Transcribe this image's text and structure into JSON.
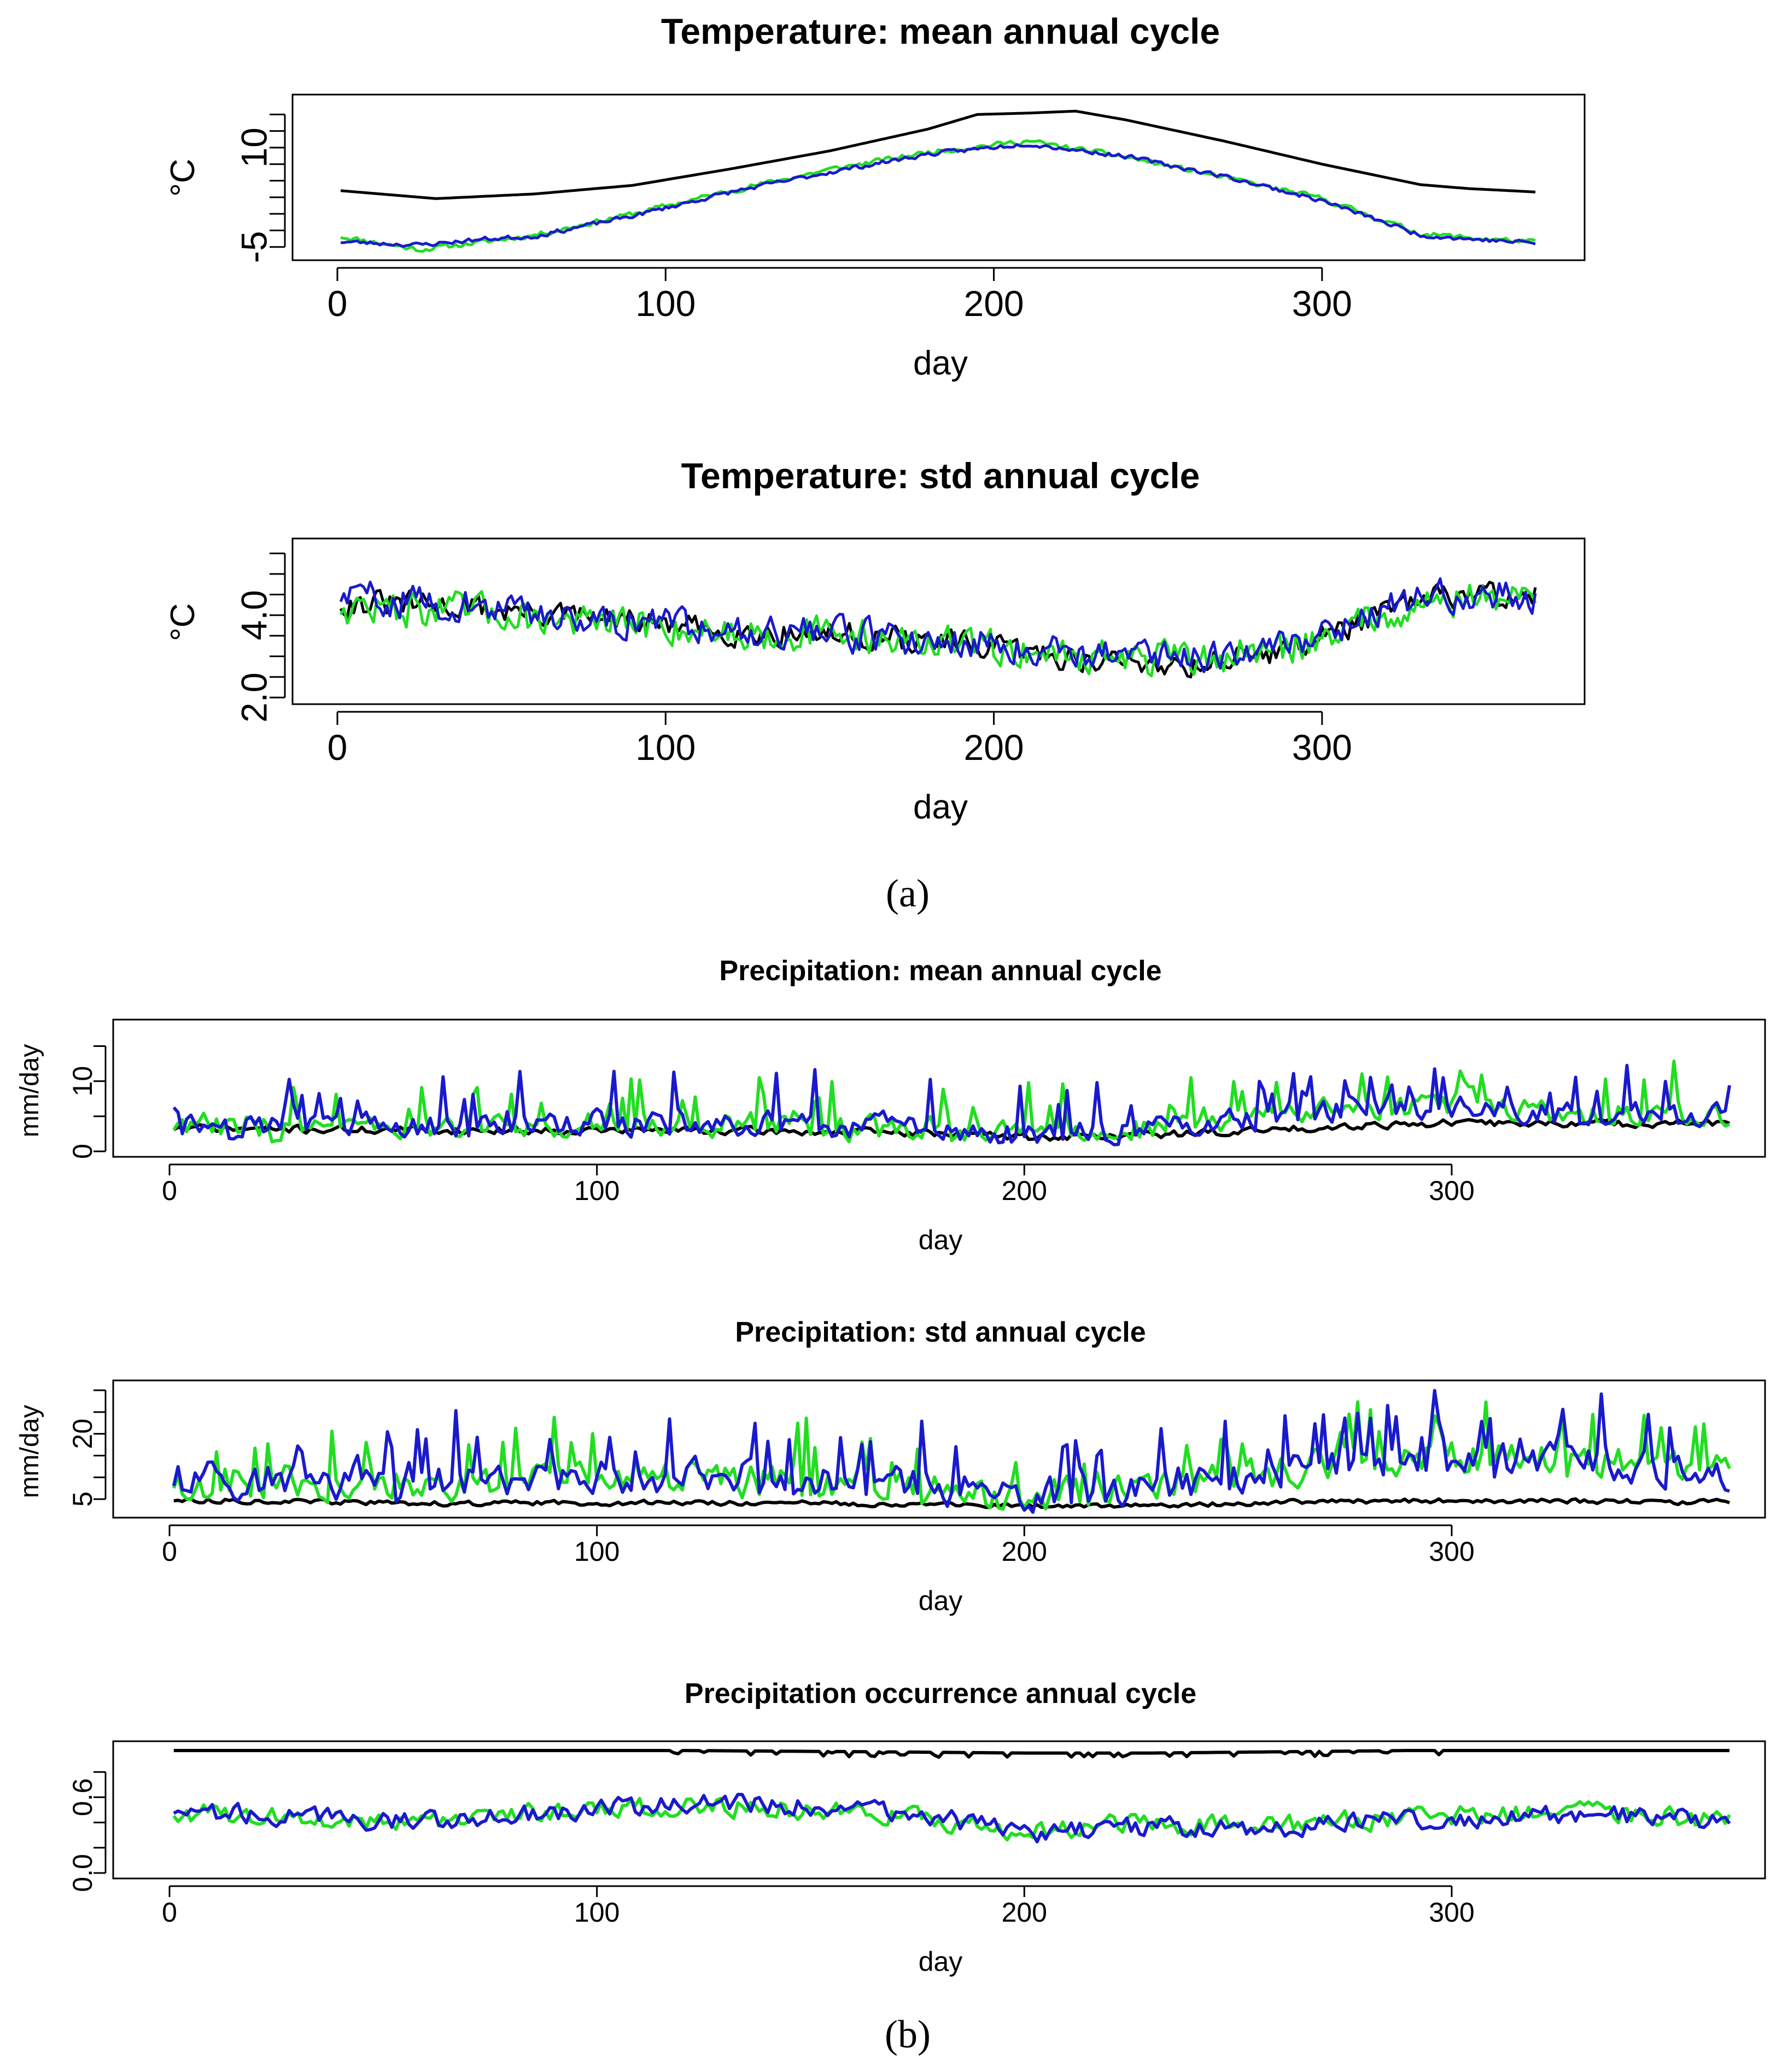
{
  "figure": {
    "panel_labels": [
      "(a)",
      "(b)"
    ]
  },
  "series_colors": {
    "observed": "#000000",
    "model_green": "#22dd22",
    "model_blue": "#1a1acc"
  },
  "chart_data": [
    {
      "type": "line",
      "title": "Temperature: mean annual cycle",
      "xlabel": "day",
      "ylabel": "°C",
      "xlim": [
        0,
        365
      ],
      "ylim": [
        -6,
        17
      ],
      "xticks": [
        0,
        100,
        200,
        300
      ],
      "yticks": [
        -5,
        10
      ],
      "yticks_minor": [
        -5,
        -2.5,
        0,
        2.5,
        5,
        7.5,
        10,
        12.5,
        15
      ],
      "series": [
        {
          "name": "observed",
          "color": "#000000",
          "x": [
            1,
            30,
            60,
            90,
            120,
            150,
            180,
            195,
            210,
            225,
            240,
            270,
            300,
            330,
            345,
            365
          ],
          "y": [
            3.5,
            2.3,
            3.0,
            4.3,
            6.8,
            9.5,
            12.8,
            15.0,
            15.2,
            15.5,
            14.2,
            11.0,
            7.5,
            4.4,
            3.8,
            3.3
          ]
        },
        {
          "name": "model_green",
          "color": "#22dd22",
          "x": [
            1,
            25,
            45,
            60,
            90,
            120,
            150,
            180,
            210,
            240,
            270,
            300,
            330,
            345,
            365
          ],
          "y": [
            -3.4,
            -5.4,
            -4.2,
            -3.2,
            0.0,
            3.5,
            6.7,
            9.3,
            11.0,
            8.6,
            5.5,
            2.3,
            -3.0,
            -3.6,
            -4.3
          ],
          "noise": 0.35,
          "seed": 11
        },
        {
          "name": "model_blue",
          "color": "#1a1acc",
          "x": [
            1,
            25,
            45,
            60,
            90,
            120,
            150,
            180,
            210,
            240,
            270,
            300,
            330,
            345,
            365
          ],
          "y": [
            -4.2,
            -4.7,
            -3.8,
            -3.4,
            -0.3,
            3.3,
            6.3,
            9.0,
            10.6,
            8.7,
            5.7,
            2.0,
            -3.2,
            -3.8,
            -4.4
          ],
          "noise": 0.3,
          "seed": 23
        }
      ]
    },
    {
      "type": "line",
      "title": "Temperature: std annual cycle",
      "xlabel": "day",
      "ylabel": "°C",
      "xlim": [
        0,
        365
      ],
      "ylim": [
        2,
        5.7
      ],
      "xticks": [
        0,
        100,
        200,
        300
      ],
      "yticks": [
        2.0,
        4.0
      ],
      "yticks_minor": [
        2.0,
        2.5,
        3.0,
        3.5,
        4.0,
        4.5,
        5.0,
        5.5
      ],
      "series": [
        {
          "name": "observed",
          "color": "#000000",
          "x": [
            1,
            40,
            80,
            120,
            160,
            200,
            230,
            260,
            290,
            320,
            340,
            365
          ],
          "y": [
            4.3,
            4.2,
            3.9,
            3.6,
            3.5,
            3.2,
            2.9,
            2.8,
            3.2,
            4.1,
            4.5,
            4.5
          ],
          "noise": 0.28,
          "seed": 31
        },
        {
          "name": "model_green",
          "color": "#22dd22",
          "x": [
            1,
            40,
            80,
            120,
            160,
            200,
            230,
            260,
            290,
            320,
            340,
            365
          ],
          "y": [
            4.2,
            4.1,
            3.8,
            3.6,
            3.5,
            3.2,
            3.0,
            2.9,
            3.2,
            4.1,
            4.4,
            4.4
          ],
          "noise": 0.38,
          "seed": 47
        },
        {
          "name": "model_blue",
          "color": "#1a1acc",
          "x": [
            1,
            40,
            80,
            120,
            160,
            200,
            230,
            260,
            290,
            320,
            340,
            365
          ],
          "y": [
            4.5,
            4.2,
            3.9,
            3.7,
            3.5,
            3.3,
            3.1,
            3.0,
            3.3,
            4.2,
            4.5,
            4.4
          ],
          "noise": 0.36,
          "seed": 59
        }
      ]
    },
    {
      "type": "line",
      "title": "Precipitation: mean annual cycle",
      "xlabel": "day",
      "ylabel": "mm/day",
      "xlim": [
        0,
        365
      ],
      "ylim": [
        0,
        18
      ],
      "xticks": [
        0,
        100,
        200,
        300
      ],
      "yticks": [
        0,
        10
      ],
      "yticks_minor": [
        0,
        5,
        10,
        15
      ],
      "series": [
        {
          "name": "observed",
          "color": "#000000",
          "x": [
            1,
            60,
            120,
            180,
            200,
            220,
            250,
            280,
            300,
            330,
            365
          ],
          "y": [
            3.3,
            3.0,
            3.0,
            2.6,
            2.0,
            2.2,
            2.8,
            3.8,
            4.0,
            4.0,
            4.0
          ],
          "noise": 0.5,
          "seed": 71,
          "spike": 0.0
        },
        {
          "name": "model_green",
          "color": "#22dd22",
          "x": [
            1,
            60,
            120,
            180,
            200,
            220,
            250,
            280,
            300,
            330,
            365
          ],
          "y": [
            3.8,
            3.3,
            4.0,
            3.0,
            2.2,
            2.8,
            4.5,
            6.5,
            6.6,
            5.5,
            5.0
          ],
          "noise": 1.6,
          "seed": 83,
          "spike": 0.12
        },
        {
          "name": "model_blue",
          "color": "#1a1acc",
          "x": [
            1,
            60,
            120,
            180,
            200,
            220,
            250,
            280,
            300,
            330,
            365
          ],
          "y": [
            4.0,
            3.4,
            4.2,
            3.2,
            2.0,
            2.6,
            4.4,
            6.3,
            6.5,
            5.2,
            4.8
          ],
          "noise": 1.6,
          "seed": 97,
          "spike": 0.12
        }
      ]
    },
    {
      "type": "line",
      "title": "Precipitation: std annual cycle",
      "xlabel": "day",
      "ylabel": "mm/day",
      "xlim": [
        0,
        365
      ],
      "ylim": [
        2,
        31
      ],
      "xticks": [
        0,
        100,
        200,
        300
      ],
      "yticks": [
        5,
        20
      ],
      "yticks_minor": [
        5,
        10,
        15,
        20,
        25,
        30
      ],
      "series": [
        {
          "name": "observed",
          "color": "#000000",
          "x": [
            1,
            60,
            120,
            180,
            200,
            230,
            260,
            290,
            330,
            365
          ],
          "y": [
            4.8,
            4.0,
            4.2,
            3.8,
            3.3,
            3.5,
            4.3,
            4.6,
            4.5,
            4.3
          ],
          "noise": 0.5,
          "seed": 113,
          "spike": 0.0
        },
        {
          "name": "model_green",
          "color": "#22dd22",
          "x": [
            1,
            60,
            120,
            180,
            200,
            230,
            260,
            290,
            330,
            365
          ],
          "y": [
            9.0,
            8.5,
            10.0,
            7.5,
            5.5,
            7.5,
            11.0,
            15.0,
            14.0,
            11.0
          ],
          "noise": 3.5,
          "seed": 127,
          "spike": 0.14
        },
        {
          "name": "model_blue",
          "color": "#1a1acc",
          "x": [
            1,
            60,
            120,
            180,
            200,
            230,
            260,
            290,
            330,
            365
          ],
          "y": [
            9.5,
            8.8,
            10.5,
            7.8,
            5.8,
            7.8,
            11.5,
            14.5,
            14.0,
            10.5
          ],
          "noise": 3.5,
          "seed": 139,
          "spike": 0.14
        }
      ]
    },
    {
      "type": "line",
      "title": "Precipitation occurrence annual cycle",
      "xlabel": "day",
      "ylabel": "",
      "xlim": [
        0,
        365
      ],
      "ylim": [
        0,
        1.0
      ],
      "xticks": [
        0,
        100,
        200,
        300
      ],
      "yticks": [
        0.0,
        0.6
      ],
      "yticks_minor": [
        0.0,
        0.2,
        0.4,
        0.6,
        0.8
      ],
      "series": [
        {
          "name": "observed",
          "color": "#000000",
          "x": [
            1,
            120,
            165,
            200,
            230,
            260,
            290,
            365
          ],
          "y": [
            0.97,
            0.97,
            0.96,
            0.95,
            0.95,
            0.96,
            0.97,
            0.97
          ],
          "noise": 0.0,
          "seed": 151,
          "dips": true
        },
        {
          "name": "model_green",
          "color": "#22dd22",
          "x": [
            1,
            60,
            100,
            130,
            160,
            180,
            200,
            220,
            260,
            300,
            330,
            365
          ],
          "y": [
            0.48,
            0.4,
            0.52,
            0.52,
            0.5,
            0.42,
            0.32,
            0.38,
            0.38,
            0.46,
            0.48,
            0.42
          ],
          "noise": 0.07,
          "seed": 163
        },
        {
          "name": "model_blue",
          "color": "#1a1acc",
          "x": [
            1,
            60,
            100,
            130,
            160,
            180,
            200,
            220,
            260,
            300,
            330,
            365
          ],
          "y": [
            0.5,
            0.4,
            0.52,
            0.55,
            0.52,
            0.44,
            0.3,
            0.36,
            0.36,
            0.44,
            0.46,
            0.42
          ],
          "noise": 0.07,
          "seed": 179
        }
      ]
    }
  ]
}
